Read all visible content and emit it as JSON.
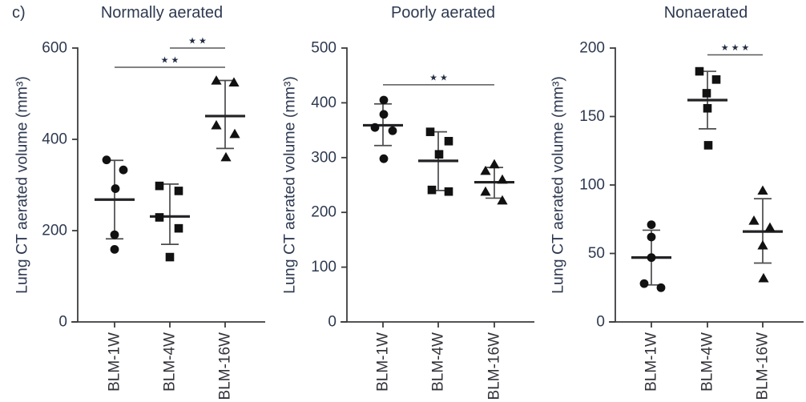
{
  "figure_label": "c)",
  "colors": {
    "marker": "#111111",
    "error_bar": "#4b4b4d",
    "mean_line": "#232325",
    "axis": "#3c3c3e",
    "significance_line": "#59595b",
    "text": "#2e3950"
  },
  "chart_data": [
    {
      "type": "scatter",
      "title": "Normally aerated",
      "ylabel": "Lung CT aerated volume (mm³)",
      "ylim": [
        0,
        600
      ],
      "yticks": [
        0,
        200,
        400,
        600
      ],
      "categories": [
        "BLM-1W",
        "BLM-4W",
        "BLM-16W"
      ],
      "groups": [
        {
          "category": "BLM-1W",
          "marker": "circle",
          "values": [
            355,
            333,
            292,
            191,
            159
          ],
          "x_offsets": [
            -10,
            11,
            1,
            0,
            0
          ],
          "mean": 268,
          "err_low": 182,
          "err_high": 354
        },
        {
          "category": "BLM-4W",
          "marker": "square",
          "values": [
            298,
            287,
            229,
            205,
            142
          ],
          "x_offsets": [
            -13,
            11,
            -13,
            11,
            0
          ],
          "mean": 231,
          "err_low": 170,
          "err_high": 302
        },
        {
          "category": "BLM-16W",
          "marker": "triangle",
          "values": [
            529,
            525,
            431,
            412,
            361
          ],
          "x_offsets": [
            -11,
            11,
            -11,
            12,
            1
          ],
          "mean": 451,
          "err_low": 380,
          "err_high": 529
        }
      ],
      "significance": [
        {
          "from": "BLM-4W",
          "to": "BLM-16W",
          "label": "**",
          "at_value": 600
        },
        {
          "from": "BLM-1W",
          "to": "BLM-16W",
          "label": "**",
          "at_value": 558
        }
      ]
    },
    {
      "type": "scatter",
      "title": "Poorly aerated",
      "ylabel": "Lung CT aerated volume (mm³)",
      "ylim": [
        0,
        500
      ],
      "yticks": [
        0,
        100,
        200,
        300,
        400,
        500
      ],
      "categories": [
        "BLM-1W",
        "BLM-4W",
        "BLM-16W"
      ],
      "groups": [
        {
          "category": "BLM-1W",
          "marker": "circle",
          "values": [
            405,
            379,
            355,
            349,
            298
          ],
          "x_offsets": [
            1,
            1,
            -10,
            12,
            1
          ],
          "mean": 359,
          "err_low": 322,
          "err_high": 398
        },
        {
          "category": "BLM-4W",
          "marker": "square",
          "values": [
            347,
            330,
            306,
            241,
            238
          ],
          "x_offsets": [
            -10,
            13,
            1,
            -8,
            13
          ],
          "mean": 294,
          "err_low": 240,
          "err_high": 347
        },
        {
          "category": "BLM-16W",
          "marker": "triangle",
          "values": [
            288,
            276,
            260,
            238,
            222
          ],
          "x_offsets": [
            0,
            -11,
            10,
            -11,
            10
          ],
          "mean": 255,
          "err_low": 226,
          "err_high": 282
        }
      ],
      "significance": [
        {
          "from": "BLM-1W",
          "to": "BLM-16W",
          "label": "**",
          "at_value": 433
        }
      ]
    },
    {
      "type": "scatter",
      "title": "Nonaerated",
      "ylabel": "Lung CT aerated volume (mm³)",
      "ylim": [
        0,
        200
      ],
      "yticks": [
        0,
        50,
        100,
        150,
        200
      ],
      "categories": [
        "BLM-1W",
        "BLM-4W",
        "BLM-16W"
      ],
      "groups": [
        {
          "category": "BLM-1W",
          "marker": "circle",
          "values": [
            71,
            62,
            47,
            28,
            25
          ],
          "x_offsets": [
            0,
            0,
            0,
            -9,
            12
          ],
          "mean": 47,
          "err_low": 27,
          "err_high": 67
        },
        {
          "category": "BLM-4W",
          "marker": "square",
          "values": [
            183,
            177,
            167,
            156,
            129
          ],
          "x_offsets": [
            -10,
            11,
            -1,
            0,
            1
          ],
          "mean": 162,
          "err_low": 141,
          "err_high": 183
        },
        {
          "category": "BLM-16W",
          "marker": "triangle",
          "values": [
            96,
            74,
            69,
            56,
            32
          ],
          "x_offsets": [
            0,
            -11,
            9,
            0,
            1
          ],
          "mean": 66,
          "err_low": 43,
          "err_high": 90
        }
      ],
      "significance": [
        {
          "from": "BLM-4W",
          "to": "BLM-16W",
          "label": "***",
          "at_value": 195
        }
      ]
    }
  ]
}
